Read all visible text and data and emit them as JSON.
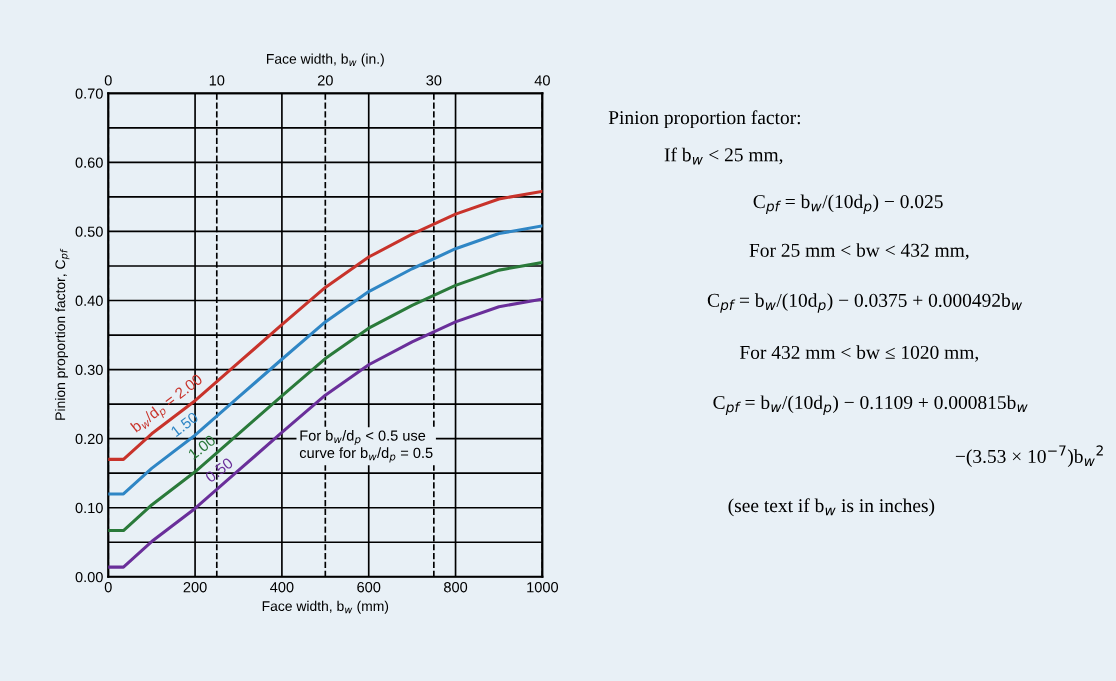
{
  "chart_data": {
    "type": "line",
    "xlabel": "Face width, b$_{w}$ (mm)",
    "x2label": "Face width, b$_{w}$ (in.)",
    "ylabel": "Pinion proportion factor, C$_{pf}$",
    "x": [
      0,
      35,
      100,
      200,
      300,
      400,
      500,
      600,
      700,
      800,
      900,
      1000
    ],
    "series": [
      {
        "name": "b$_{w}$/d$_{p}$ = 2.00",
        "color": "#c8332b",
        "values": [
          0.17,
          0.17,
          0.207,
          0.255,
          0.31,
          0.365,
          0.419,
          0.463,
          0.496,
          0.525,
          0.547,
          0.558
        ]
      },
      {
        "name": "1.50",
        "color": "#2f86c5",
        "values": [
          0.12,
          0.12,
          0.157,
          0.205,
          0.26,
          0.315,
          0.369,
          0.413,
          0.446,
          0.475,
          0.497,
          0.508
        ]
      },
      {
        "name": "1.00",
        "color": "#2a7a3a",
        "values": [
          0.067,
          0.067,
          0.104,
          0.152,
          0.207,
          0.262,
          0.316,
          0.36,
          0.393,
          0.422,
          0.444,
          0.455
        ]
      },
      {
        "name": "0.50",
        "color": "#6a2f9a",
        "values": [
          0.014,
          0.014,
          0.051,
          0.099,
          0.154,
          0.209,
          0.263,
          0.307,
          0.34,
          0.369,
          0.391,
          0.402
        ]
      }
    ],
    "xlim": [
      0,
      1000
    ],
    "xticks": [
      0,
      200,
      400,
      600,
      800,
      1000
    ],
    "x2lim": [
      0,
      40
    ],
    "x2ticks": [
      0,
      10,
      20,
      30,
      40
    ],
    "ylim": [
      0,
      0.7
    ],
    "yticks": [
      {
        "value": 0,
        "label": "0.00"
      },
      {
        "value": 0.05,
        "label": null
      },
      {
        "value": 0.1,
        "label": "0.10"
      },
      {
        "value": 0.15,
        "label": null
      },
      {
        "value": 0.2,
        "label": "0.20"
      },
      {
        "value": 0.25,
        "label": null
      },
      {
        "value": 0.3,
        "label": "0.30"
      },
      {
        "value": 0.35,
        "label": null
      },
      {
        "value": 0.4,
        "label": "0.40"
      },
      {
        "value": 0.45,
        "label": null
      },
      {
        "value": 0.5,
        "label": "0.50"
      },
      {
        "value": 0.55,
        "label": null
      },
      {
        "value": 0.6,
        "label": "0.60"
      },
      {
        "value": 0.65,
        "label": null
      },
      {
        "value": 0.7,
        "label": "0.70"
      }
    ],
    "grid": true,
    "line_style": "solid",
    "annotations": [
      "For b$_{w}$/d$_{p}$ < 0.5 use\ncurve for b$_{w}$/d$_{p}$ = 0.5",
      "Pinion proportion factor:",
      "If b$_{w}$ < 25 mm,",
      "C$_{pf}$ = b$_{w}$/(10d$_{p}$) − 0.025",
      "For 25 mm < bw < 432 mm,",
      "C$_{pf}$ = b$_{w}$/(10d$_{p}$) − 0.0375 + 0.000492b$_{w}$",
      "For 432 mm < bw ≤ 1020 mm,",
      "C$_{pf}$ = b$_{w}$/(10d$_{p}$) − 0.1109 + 0.000815b$_{w}$",
      "−(3.53 × 10$^{−7}$)b$_{w}$$^{2}$",
      "(see text if b$_{w}$ is in inches)"
    ]
  }
}
